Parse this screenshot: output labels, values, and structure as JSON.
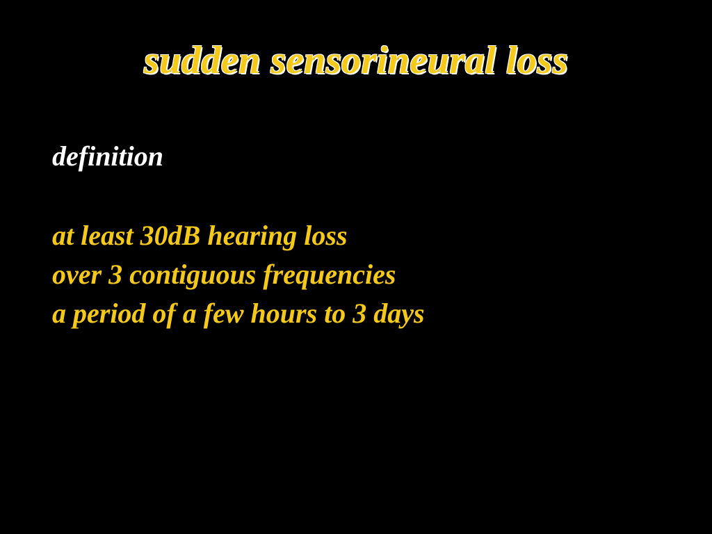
{
  "slide": {
    "background_color": "#000000",
    "font_family": "Comic Sans MS",
    "title": {
      "text": "sudden sensorineural loss",
      "color": "#f5c91a",
      "outline_color": "#ffffff",
      "fontsize": 56,
      "italic": true,
      "bold": true,
      "align": "center"
    },
    "subheading": {
      "text": "definition",
      "color": "#ffffff",
      "fontsize": 40,
      "italic": true,
      "bold": true
    },
    "bullets": [
      {
        "text": "at least 30dB hearing loss",
        "color": "#f5c91a"
      },
      {
        "text": "over 3 contiguous frequencies",
        "color": "#f5c91a"
      },
      {
        "text": "a period of a few hours to 3 days",
        "color": "#f5c91a"
      }
    ],
    "bullet_style": {
      "fontsize": 40,
      "italic": true,
      "bold": true,
      "line_height": 1.4
    }
  }
}
